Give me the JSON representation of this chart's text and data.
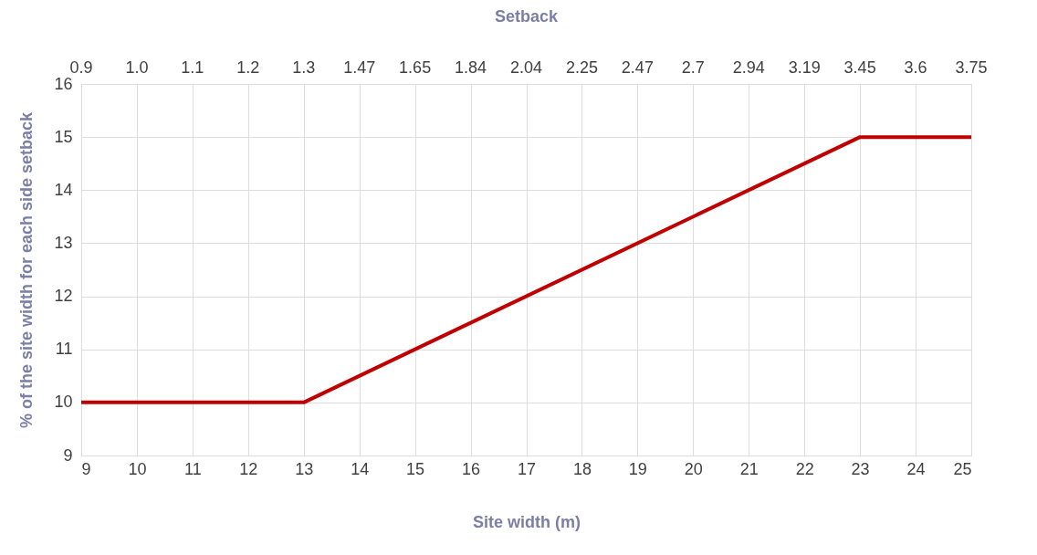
{
  "chart_data": {
    "type": "line",
    "xlabel": "Site width (m)",
    "ylabel": "% of the site width for each side setback",
    "x2label": "Setback",
    "x": [
      9,
      13,
      23,
      25
    ],
    "series": [
      {
        "color": "#c00000",
        "values": [
          10,
          10,
          15,
          15
        ]
      }
    ],
    "xlim": [
      9,
      25
    ],
    "xticks": [
      9,
      10,
      11,
      12,
      13,
      14,
      15,
      16,
      17,
      18,
      19,
      20,
      21,
      22,
      23,
      24,
      25
    ],
    "annotations": [
      "0.9",
      "1.0",
      "1.1",
      "1.2",
      "1.3",
      "1.47",
      "1.65",
      "1.84",
      "2.04",
      "2.25",
      "2.47",
      "2.7",
      "2.94",
      "3.19",
      "3.45",
      "3.6",
      "3.75"
    ],
    "ylim": [
      9,
      16
    ],
    "yticks": [
      9,
      10,
      11,
      12,
      13,
      14,
      15,
      16
    ],
    "grid": true,
    "marker": "none",
    "line_style": "solid"
  }
}
